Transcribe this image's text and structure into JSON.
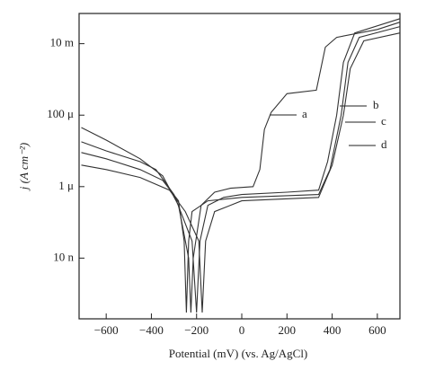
{
  "chart_data": {
    "type": "line",
    "log_y": true,
    "x_label": "Potential (mV) (vs. Ag/AgCl)",
    "y_label": "j (A cm⁻²)",
    "xlim": [
      -720,
      700
    ],
    "ylim": [
      2e-10,
      0.07
    ],
    "xticks": [
      {
        "value": -600,
        "label": "−600"
      },
      {
        "value": -400,
        "label": "−400"
      },
      {
        "value": -200,
        "label": "−200"
      },
      0,
      200,
      400,
      600
    ],
    "yticks": [
      {
        "value": 1e-08,
        "label": "10 n"
      },
      {
        "value": 1e-06,
        "label": "1 μ"
      },
      {
        "value": 0.0001,
        "label": "100 μ"
      },
      {
        "value": 0.01,
        "label": "10 m"
      }
    ],
    "series": [
      {
        "name": "a",
        "color": "#333333",
        "x": [
          -710,
          -600,
          -450,
          -350,
          -280,
          -235,
          -225,
          -215,
          -180,
          -120,
          -50,
          50,
          80,
          100,
          130,
          200,
          330,
          370,
          420,
          600,
          700
        ],
        "values": [
          4.5e-05,
          2e-05,
          6e-06,
          2e-06,
          3e-07,
          1e-08,
          3e-10,
          1e-08,
          3e-07,
          7e-07,
          9e-07,
          1e-06,
          3e-06,
          4e-05,
          0.00012,
          0.0004,
          0.0005,
          0.008,
          0.015,
          0.025,
          0.04
        ]
      },
      {
        "name": "b",
        "color": "#333333",
        "x": [
          -710,
          -600,
          -450,
          -380,
          -300,
          -220,
          -200,
          -185,
          -150,
          -80,
          0,
          200,
          340,
          380,
          420,
          450,
          500,
          700
        ],
        "values": [
          1.8e-05,
          1e-05,
          5e-06,
          3e-06,
          6e-07,
          3e-08,
          3e-10,
          3e-08,
          3e-07,
          5e-07,
          6e-07,
          7e-07,
          8e-07,
          5e-06,
          0.0001,
          0.003,
          0.02,
          0.05
        ]
      },
      {
        "name": "c",
        "color": "#333333",
        "x": [
          -710,
          -600,
          -450,
          -350,
          -280,
          -255,
          -245,
          -235,
          -220,
          -150,
          0,
          340,
          390,
          440,
          470,
          520,
          700
        ],
        "values": [
          9e-06,
          6e-06,
          3e-06,
          1.5e-06,
          4e-07,
          3e-08,
          3e-10,
          3e-08,
          2e-07,
          4e-07,
          5e-07,
          6e-07,
          3e-06,
          0.0001,
          0.003,
          0.015,
          0.03
        ]
      },
      {
        "name": "d",
        "color": "#333333",
        "x": [
          -710,
          -600,
          -450,
          -320,
          -250,
          -190,
          -175,
          -160,
          -120,
          0,
          340,
          400,
          450,
          480,
          540,
          700
        ],
        "values": [
          4e-06,
          3e-06,
          1.8e-06,
          8e-07,
          2e-07,
          3e-08,
          3e-10,
          3e-08,
          2e-07,
          4e-07,
          5e-07,
          4e-06,
          0.0001,
          0.002,
          0.012,
          0.02
        ]
      }
    ]
  }
}
